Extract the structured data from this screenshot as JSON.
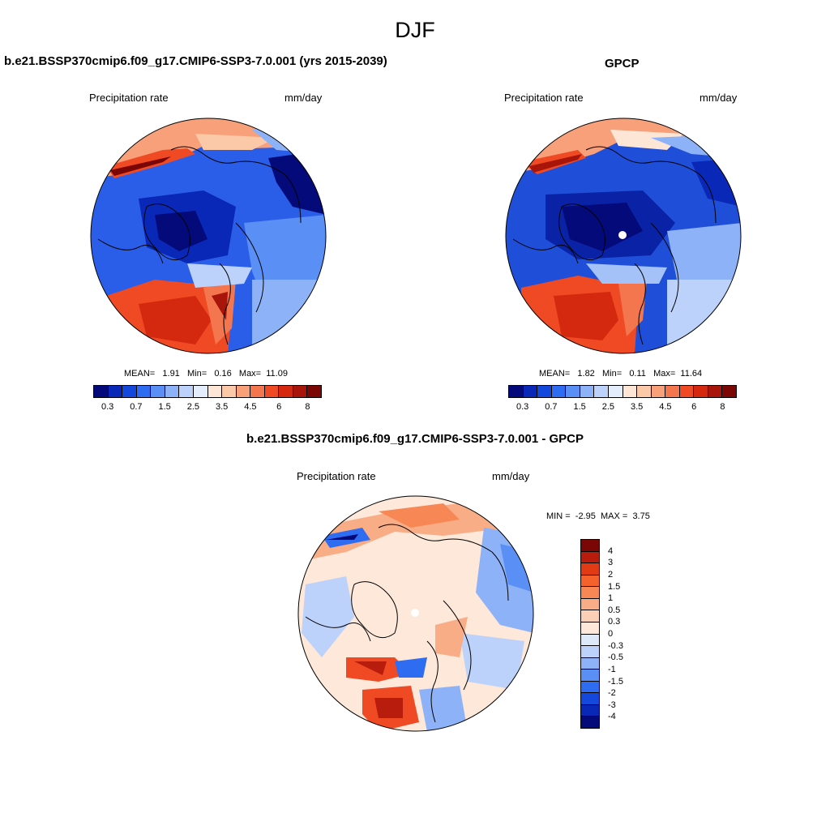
{
  "title": "DJF",
  "panels": {
    "model": {
      "title": "b.e21.BSSP370cmip6.f09_g17.CMIP6-SSP3-7.0.001 (yrs 2015-2039)",
      "left_label": "Precipitation rate",
      "right_label": "mm/day",
      "stats": {
        "mean_label": "MEAN=",
        "mean": "1.91",
        "min_label": "Min=",
        "min": "0.16",
        "max_label": "Max=",
        "max": "11.09"
      }
    },
    "obs": {
      "title": "GPCP",
      "left_label": "Precipitation rate",
      "right_label": "mm/day",
      "stats": {
        "mean_label": "MEAN=",
        "mean": "1.82",
        "min_label": "Min=",
        "min": "0.11",
        "max_label": "Max=",
        "max": "11.64"
      }
    },
    "diff": {
      "title": "b.e21.BSSP370cmip6.f09_g17.CMIP6-SSP3-7.0.001 - GPCP",
      "left_label": "Precipitation rate",
      "right_label": "mm/day",
      "stats": {
        "min_label": "MIN =",
        "min": "-2.95",
        "max_label": "MAX =",
        "max": "3.75"
      }
    }
  },
  "colorbars": {
    "precip": {
      "colors": [
        "#050a7a",
        "#0a28b8",
        "#1448dc",
        "#2e6cf2",
        "#5a8ff5",
        "#8db2f7",
        "#bcd2fa",
        "#e3edfb",
        "#fde6d5",
        "#fbc8a8",
        "#f8a07a",
        "#f4764e",
        "#ef4a24",
        "#d4280f",
        "#a8150a",
        "#7a0606"
      ],
      "ticks": [
        "0.3",
        "0.7",
        "1.5",
        "2.5",
        "3.5",
        "4.5",
        "6",
        "8"
      ]
    },
    "diff": {
      "colors": [
        "#7a0606",
        "#b81c0c",
        "#e23a14",
        "#f5622c",
        "#f78856",
        "#f9ad86",
        "#fbd0b6",
        "#fde8da",
        "#dde8f8",
        "#bcd2fa",
        "#8db2f7",
        "#5a8ff5",
        "#2e6cf2",
        "#1448dc",
        "#0a28b8",
        "#050a7a"
      ],
      "ticks": [
        "4",
        "3",
        "2",
        "1.5",
        "1",
        "0.5",
        "0.3",
        "0",
        "-0.3",
        "-0.5",
        "-1",
        "-1.5",
        "-2",
        "-3",
        "-4"
      ]
    }
  },
  "map_colors": {
    "model": {
      "bg": "#2a5ee8",
      "low": "#0a28b8",
      "high": "#ef4a24",
      "mid": "#8db2f7"
    },
    "obs": {
      "bg": "#1f4fd8",
      "low": "#0a23a6",
      "high": "#ef4a24",
      "mid": "#a4c2f8"
    },
    "diff": {
      "bg": "#fde8da",
      "low": "#5a8ff5",
      "high": "#ef4a24",
      "mid": "#bcd2fa"
    }
  }
}
